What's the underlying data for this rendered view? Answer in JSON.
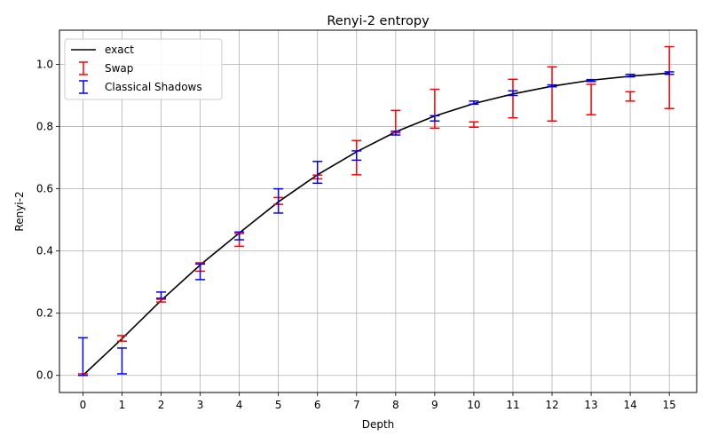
{
  "chart_data": {
    "type": "line",
    "title": "Renyi-2 entropy",
    "xlabel": "Depth",
    "ylabel": "Renyi-2",
    "xlim": [
      -0.6,
      15.7
    ],
    "ylim": [
      -0.055,
      1.11
    ],
    "x_ticks": [
      0,
      1,
      2,
      3,
      4,
      5,
      6,
      7,
      8,
      9,
      10,
      11,
      12,
      13,
      14,
      15
    ],
    "y_ticks": [
      0.0,
      0.2,
      0.4,
      0.6,
      0.8,
      1.0
    ],
    "y_tick_labels": [
      "0.0",
      "0.2",
      "0.4",
      "0.6",
      "0.8",
      "1.0"
    ],
    "grid": true,
    "legend_position": "top-left",
    "series": [
      {
        "name": "exact",
        "kind": "line",
        "color": "#000000",
        "x": [
          0,
          1,
          2,
          3,
          4,
          5,
          6,
          7,
          8,
          9,
          10,
          11,
          12,
          13,
          14,
          15
        ],
        "y": [
          0.0,
          0.118,
          0.241,
          0.355,
          0.458,
          0.558,
          0.645,
          0.719,
          0.783,
          0.834,
          0.874,
          0.905,
          0.93,
          0.949,
          0.962,
          0.972
        ]
      },
      {
        "name": "Swap",
        "kind": "errorbar",
        "color": "#ff0000",
        "x": [
          0,
          1,
          2,
          3,
          4,
          5,
          6,
          7,
          8,
          9,
          10,
          11,
          12,
          13,
          14,
          15
        ],
        "low": [
          0.0,
          0.11,
          0.236,
          0.335,
          0.415,
          0.55,
          0.632,
          0.645,
          0.78,
          0.795,
          0.798,
          0.828,
          0.818,
          0.838,
          0.882,
          0.858
        ],
        "high": [
          0.005,
          0.128,
          0.245,
          0.362,
          0.456,
          0.572,
          0.644,
          0.755,
          0.852,
          0.92,
          0.815,
          0.952,
          0.992,
          0.936,
          0.912,
          1.057
        ]
      },
      {
        "name": "Classical Shadows",
        "kind": "errorbar",
        "color": "#0000ff",
        "x": [
          0,
          1,
          2,
          3,
          4,
          5,
          6,
          7,
          8,
          9,
          10,
          11,
          12,
          13,
          14,
          15
        ],
        "low": [
          0.0,
          0.005,
          0.248,
          0.308,
          0.436,
          0.522,
          0.618,
          0.692,
          0.773,
          0.818,
          0.872,
          0.9,
          0.928,
          0.945,
          0.96,
          0.968
        ],
        "high": [
          0.121,
          0.088,
          0.268,
          0.358,
          0.461,
          0.6,
          0.688,
          0.722,
          0.785,
          0.835,
          0.882,
          0.915,
          0.934,
          0.951,
          0.968,
          0.976
        ]
      }
    ]
  }
}
